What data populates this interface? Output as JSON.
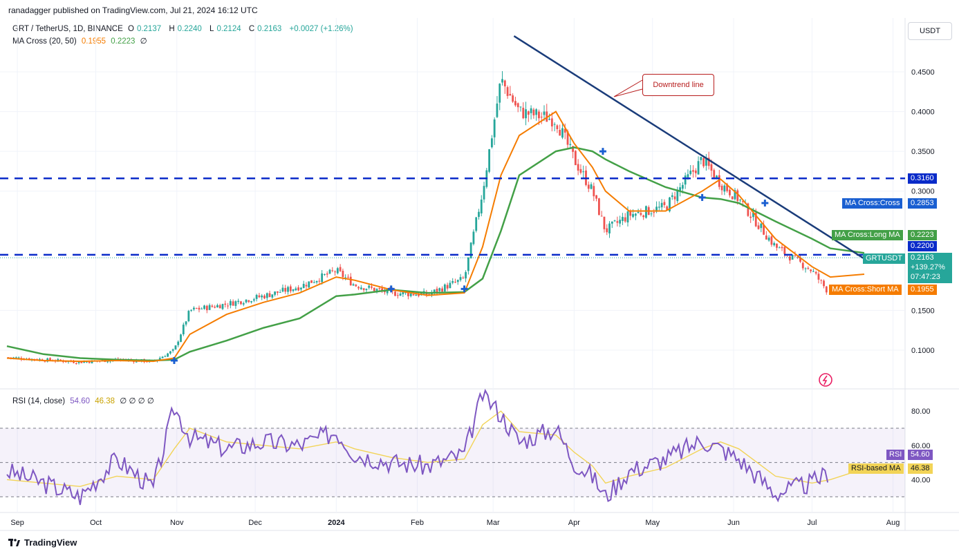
{
  "header": {
    "credit": "ranadagger published on TradingView.com, Jul 21, 2024 16:12 UTC",
    "symbol": "GRT / TetherUS, 1D, BINANCE",
    "o_label": "O",
    "o_value": "0.2137",
    "h_label": "H",
    "h_value": "0.2240",
    "l_label": "L",
    "l_value": "0.2124",
    "c_label": "C",
    "c_value": "0.2163",
    "change": "+0.0027 (+1.26%)",
    "ma_label": "MA Cross (20, 50)",
    "ma_short": "0.1955",
    "ma_long": "0.2223",
    "ma_zero": "∅",
    "currency": "USDT"
  },
  "rsi_legend": {
    "label": "RSI (14, close)",
    "rsi": "54.60",
    "rsi_ma": "46.38",
    "rest": "∅ ∅ ∅ ∅"
  },
  "annotation": {
    "text": "Downtrend line"
  },
  "price_axis": {
    "ticks": [
      "0.4500",
      "0.4000",
      "0.3500",
      "0.3000",
      "0.1500",
      "0.1000"
    ],
    "tags": {
      "level_high": "0.3160",
      "cross_label": "MA Cross:Cross",
      "cross_value": "0.2853",
      "long_label": "MA Cross:Long MA",
      "long_value": "0.2223",
      "level_low": "0.2200",
      "symbol_label": "GRTUSDT",
      "symbol_price": "0.2163",
      "symbol_change": "+139.27%",
      "symbol_timer": "07:47:23",
      "short_label": "MA Cross:Short MA",
      "short_value": "0.1955"
    }
  },
  "rsi_axis": {
    "ticks": [
      "80.00",
      "60.00",
      "40.00"
    ],
    "rsi_label": "RSI",
    "rsi_value": "54.60",
    "ma_label": "RSI-based MA",
    "ma_value": "46.38"
  },
  "time_axis": [
    "Sep",
    "Oct",
    "Nov",
    "Dec",
    "2024",
    "Feb",
    "Mar",
    "Apr",
    "May",
    "Jun",
    "Jul",
    "Aug"
  ],
  "footer": {
    "brand": "TradingView"
  },
  "colors": {
    "up": "#26a69a",
    "down": "#ef5350",
    "short_ma": "#f57c00",
    "long_ma": "#43a047",
    "trendline": "#1a3c7a",
    "level": "#0a2bc9",
    "rsi": "#7e57c2",
    "rsi_ma": "#f2d457",
    "annotation": "#b71c1c"
  },
  "chart_data": {
    "type": "line",
    "x": [
      "2023-08-28",
      "2023-09-11",
      "2023-09-25",
      "2023-10-09",
      "2023-10-23",
      "2023-10-31",
      "2023-11-06",
      "2023-11-20",
      "2023-12-04",
      "2023-12-18",
      "2024-01-01",
      "2024-01-08",
      "2024-01-22",
      "2024-02-05",
      "2024-02-19",
      "2024-02-26",
      "2024-03-04",
      "2024-03-11",
      "2024-03-25",
      "2024-04-01",
      "2024-04-08",
      "2024-04-13",
      "2024-04-22",
      "2024-05-06",
      "2024-05-20",
      "2024-05-27",
      "2024-06-03",
      "2024-06-17",
      "2024-07-01",
      "2024-07-08",
      "2024-07-21"
    ],
    "series": [
      {
        "name": "GRTUSDT",
        "values": [
          0.091,
          0.088,
          0.085,
          0.088,
          0.086,
          0.1,
          0.15,
          0.158,
          0.168,
          0.18,
          0.2,
          0.182,
          0.172,
          0.17,
          0.19,
          0.3,
          0.44,
          0.4,
          0.39,
          0.34,
          0.3,
          0.25,
          0.27,
          0.28,
          0.34,
          0.31,
          0.29,
          0.23,
          0.2,
          0.17,
          0.2163
        ]
      }
    ],
    "short_ma": [
      0.09,
      0.087,
      0.086,
      0.087,
      0.086,
      0.09,
      0.12,
      0.145,
      0.16,
      0.172,
      0.192,
      0.188,
      0.176,
      0.169,
      0.172,
      0.23,
      0.32,
      0.37,
      0.4,
      0.36,
      0.33,
      0.3,
      0.275,
      0.275,
      0.3,
      0.315,
      0.295,
      0.24,
      0.205,
      0.192,
      0.1955
    ],
    "long_ma": [
      0.105,
      0.095,
      0.09,
      0.088,
      0.087,
      0.088,
      0.098,
      0.112,
      0.128,
      0.14,
      0.168,
      0.17,
      0.176,
      0.172,
      0.173,
      0.19,
      0.25,
      0.32,
      0.35,
      0.355,
      0.35,
      0.34,
      0.325,
      0.305,
      0.292,
      0.29,
      0.285,
      0.262,
      0.24,
      0.228,
      0.2223
    ],
    "crosses": [
      {
        "x": "2023-10-31",
        "y": 0.087
      },
      {
        "x": "2024-01-22",
        "y": 0.177
      },
      {
        "x": "2024-02-19",
        "y": 0.177
      },
      {
        "x": "2024-04-12",
        "y": 0.35
      },
      {
        "x": "2024-05-20",
        "y": 0.292
      },
      {
        "x": "2024-06-13",
        "y": 0.285
      }
    ],
    "levels": [
      0.316,
      0.22
    ],
    "downtrend_line": [
      {
        "x": "2024-03-09",
        "y": 0.495
      },
      {
        "x": "2024-07-21",
        "y": 0.215
      }
    ],
    "ylim": [
      0.06,
      0.5
    ],
    "rsi": {
      "x": [
        "2023-08-28",
        "2023-09-11",
        "2023-09-25",
        "2023-10-09",
        "2023-10-23",
        "2023-10-31",
        "2023-11-06",
        "2023-11-20",
        "2023-12-04",
        "2023-12-18",
        "2024-01-01",
        "2024-01-08",
        "2024-01-22",
        "2024-02-05",
        "2024-02-19",
        "2024-02-26",
        "2024-03-04",
        "2024-03-11",
        "2024-03-25",
        "2024-04-01",
        "2024-04-08",
        "2024-04-13",
        "2024-04-22",
        "2024-05-06",
        "2024-05-20",
        "2024-05-27",
        "2024-06-03",
        "2024-06-17",
        "2024-07-01",
        "2024-07-08",
        "2024-07-21"
      ],
      "values": [
        45,
        38,
        30,
        52,
        35,
        82,
        65,
        58,
        62,
        60,
        68,
        55,
        50,
        48,
        55,
        90,
        78,
        62,
        70,
        50,
        42,
        30,
        45,
        52,
        63,
        58,
        52,
        32,
        38,
        45,
        54.6
      ],
      "ma": [
        40,
        38,
        36,
        42,
        40,
        58,
        70,
        62,
        60,
        58,
        62,
        58,
        53,
        50,
        52,
        72,
        80,
        68,
        66,
        56,
        48,
        38,
        42,
        47,
        58,
        62,
        58,
        42,
        38,
        40,
        46.38
      ],
      "levels": [
        70,
        50,
        30
      ],
      "ylim": [
        20,
        95
      ]
    }
  }
}
